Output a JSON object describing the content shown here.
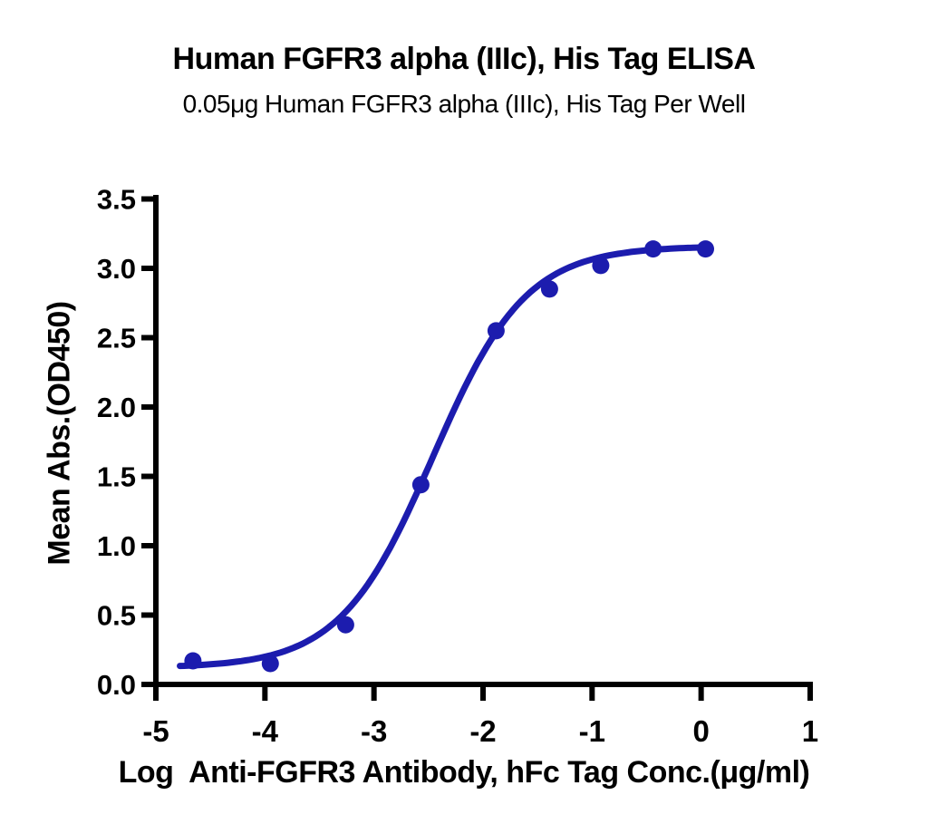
{
  "chart_data": {
    "type": "scatter",
    "title": "Human FGFR3 alpha (IIIc), His Tag ELISA",
    "subtitle": "0.05μg Human FGFR3 alpha (IIIc), His Tag Per Well",
    "xlabel": "Log  Anti-FGFR3 Antibody, hFc Tag Conc.(μg/ml)",
    "ylabel": "Mean Abs.(OD450)",
    "xlim": [
      -5,
      1
    ],
    "ylim": [
      0.0,
      3.5
    ],
    "xticks": [
      {
        "v": -5,
        "label": "-5"
      },
      {
        "v": -4,
        "label": "-4"
      },
      {
        "v": -3,
        "label": "-3"
      },
      {
        "v": -2,
        "label": "-2"
      },
      {
        "v": -1,
        "label": "-1"
      },
      {
        "v": 0,
        "label": "0"
      },
      {
        "v": 1,
        "label": "1"
      }
    ],
    "yticks": [
      {
        "v": 0.0,
        "label": "0.0"
      },
      {
        "v": 0.5,
        "label": "0.5"
      },
      {
        "v": 1.0,
        "label": "1.0"
      },
      {
        "v": 1.5,
        "label": "1.5"
      },
      {
        "v": 2.0,
        "label": "2.0"
      },
      {
        "v": 2.5,
        "label": "2.5"
      },
      {
        "v": 3.0,
        "label": "3.0"
      },
      {
        "v": 3.5,
        "label": "3.5"
      }
    ],
    "grid": false,
    "legend": null,
    "series": [
      {
        "name": "Anti-FGFR3 Antibody, hFc Tag",
        "points": [
          {
            "x": -4.66,
            "y": 0.17
          },
          {
            "x": -3.95,
            "y": 0.15
          },
          {
            "x": -3.26,
            "y": 0.43
          },
          {
            "x": -2.57,
            "y": 1.44
          },
          {
            "x": -1.88,
            "y": 2.55
          },
          {
            "x": -1.39,
            "y": 2.85
          },
          {
            "x": -0.92,
            "y": 3.02
          },
          {
            "x": -0.44,
            "y": 3.14
          },
          {
            "x": 0.04,
            "y": 3.14
          }
        ]
      }
    ],
    "fit_curve": {
      "model": "4PL sigmoid",
      "bottom": 0.12,
      "top": 3.16,
      "log_ec50": -2.46,
      "hill_slope": 1.02,
      "x_start": -4.78,
      "x_end": 0.04
    },
    "colors": {
      "curve": "#1c1cae",
      "points": "#1c1cae",
      "axis": "#000000",
      "text": "#000000",
      "background": "#ffffff"
    }
  }
}
